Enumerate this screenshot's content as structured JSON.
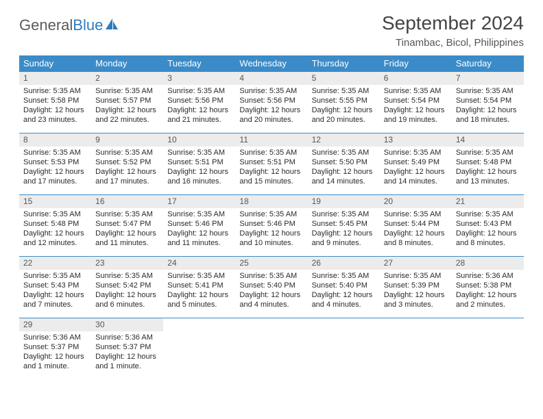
{
  "logo": {
    "part1": "General",
    "part2": "Blue"
  },
  "title": "September 2024",
  "location": "Tinambac, Bicol, Philippines",
  "colors": {
    "header_bg": "#3b8bc8",
    "header_text": "#ffffff",
    "daynum_bg": "#ececec",
    "row_border": "#3b8bc8",
    "logo_gray": "#5a5a5a",
    "logo_blue": "#2f7bbf"
  },
  "weekdays": [
    "Sunday",
    "Monday",
    "Tuesday",
    "Wednesday",
    "Thursday",
    "Friday",
    "Saturday"
  ],
  "weeks": [
    [
      {
        "day": "1",
        "sunrise": "Sunrise: 5:35 AM",
        "sunset": "Sunset: 5:58 PM",
        "daylight1": "Daylight: 12 hours",
        "daylight2": "and 23 minutes."
      },
      {
        "day": "2",
        "sunrise": "Sunrise: 5:35 AM",
        "sunset": "Sunset: 5:57 PM",
        "daylight1": "Daylight: 12 hours",
        "daylight2": "and 22 minutes."
      },
      {
        "day": "3",
        "sunrise": "Sunrise: 5:35 AM",
        "sunset": "Sunset: 5:56 PM",
        "daylight1": "Daylight: 12 hours",
        "daylight2": "and 21 minutes."
      },
      {
        "day": "4",
        "sunrise": "Sunrise: 5:35 AM",
        "sunset": "Sunset: 5:56 PM",
        "daylight1": "Daylight: 12 hours",
        "daylight2": "and 20 minutes."
      },
      {
        "day": "5",
        "sunrise": "Sunrise: 5:35 AM",
        "sunset": "Sunset: 5:55 PM",
        "daylight1": "Daylight: 12 hours",
        "daylight2": "and 20 minutes."
      },
      {
        "day": "6",
        "sunrise": "Sunrise: 5:35 AM",
        "sunset": "Sunset: 5:54 PM",
        "daylight1": "Daylight: 12 hours",
        "daylight2": "and 19 minutes."
      },
      {
        "day": "7",
        "sunrise": "Sunrise: 5:35 AM",
        "sunset": "Sunset: 5:54 PM",
        "daylight1": "Daylight: 12 hours",
        "daylight2": "and 18 minutes."
      }
    ],
    [
      {
        "day": "8",
        "sunrise": "Sunrise: 5:35 AM",
        "sunset": "Sunset: 5:53 PM",
        "daylight1": "Daylight: 12 hours",
        "daylight2": "and 17 minutes."
      },
      {
        "day": "9",
        "sunrise": "Sunrise: 5:35 AM",
        "sunset": "Sunset: 5:52 PM",
        "daylight1": "Daylight: 12 hours",
        "daylight2": "and 17 minutes."
      },
      {
        "day": "10",
        "sunrise": "Sunrise: 5:35 AM",
        "sunset": "Sunset: 5:51 PM",
        "daylight1": "Daylight: 12 hours",
        "daylight2": "and 16 minutes."
      },
      {
        "day": "11",
        "sunrise": "Sunrise: 5:35 AM",
        "sunset": "Sunset: 5:51 PM",
        "daylight1": "Daylight: 12 hours",
        "daylight2": "and 15 minutes."
      },
      {
        "day": "12",
        "sunrise": "Sunrise: 5:35 AM",
        "sunset": "Sunset: 5:50 PM",
        "daylight1": "Daylight: 12 hours",
        "daylight2": "and 14 minutes."
      },
      {
        "day": "13",
        "sunrise": "Sunrise: 5:35 AM",
        "sunset": "Sunset: 5:49 PM",
        "daylight1": "Daylight: 12 hours",
        "daylight2": "and 14 minutes."
      },
      {
        "day": "14",
        "sunrise": "Sunrise: 5:35 AM",
        "sunset": "Sunset: 5:48 PM",
        "daylight1": "Daylight: 12 hours",
        "daylight2": "and 13 minutes."
      }
    ],
    [
      {
        "day": "15",
        "sunrise": "Sunrise: 5:35 AM",
        "sunset": "Sunset: 5:48 PM",
        "daylight1": "Daylight: 12 hours",
        "daylight2": "and 12 minutes."
      },
      {
        "day": "16",
        "sunrise": "Sunrise: 5:35 AM",
        "sunset": "Sunset: 5:47 PM",
        "daylight1": "Daylight: 12 hours",
        "daylight2": "and 11 minutes."
      },
      {
        "day": "17",
        "sunrise": "Sunrise: 5:35 AM",
        "sunset": "Sunset: 5:46 PM",
        "daylight1": "Daylight: 12 hours",
        "daylight2": "and 11 minutes."
      },
      {
        "day": "18",
        "sunrise": "Sunrise: 5:35 AM",
        "sunset": "Sunset: 5:46 PM",
        "daylight1": "Daylight: 12 hours",
        "daylight2": "and 10 minutes."
      },
      {
        "day": "19",
        "sunrise": "Sunrise: 5:35 AM",
        "sunset": "Sunset: 5:45 PM",
        "daylight1": "Daylight: 12 hours",
        "daylight2": "and 9 minutes."
      },
      {
        "day": "20",
        "sunrise": "Sunrise: 5:35 AM",
        "sunset": "Sunset: 5:44 PM",
        "daylight1": "Daylight: 12 hours",
        "daylight2": "and 8 minutes."
      },
      {
        "day": "21",
        "sunrise": "Sunrise: 5:35 AM",
        "sunset": "Sunset: 5:43 PM",
        "daylight1": "Daylight: 12 hours",
        "daylight2": "and 8 minutes."
      }
    ],
    [
      {
        "day": "22",
        "sunrise": "Sunrise: 5:35 AM",
        "sunset": "Sunset: 5:43 PM",
        "daylight1": "Daylight: 12 hours",
        "daylight2": "and 7 minutes."
      },
      {
        "day": "23",
        "sunrise": "Sunrise: 5:35 AM",
        "sunset": "Sunset: 5:42 PM",
        "daylight1": "Daylight: 12 hours",
        "daylight2": "and 6 minutes."
      },
      {
        "day": "24",
        "sunrise": "Sunrise: 5:35 AM",
        "sunset": "Sunset: 5:41 PM",
        "daylight1": "Daylight: 12 hours",
        "daylight2": "and 5 minutes."
      },
      {
        "day": "25",
        "sunrise": "Sunrise: 5:35 AM",
        "sunset": "Sunset: 5:40 PM",
        "daylight1": "Daylight: 12 hours",
        "daylight2": "and 4 minutes."
      },
      {
        "day": "26",
        "sunrise": "Sunrise: 5:35 AM",
        "sunset": "Sunset: 5:40 PM",
        "daylight1": "Daylight: 12 hours",
        "daylight2": "and 4 minutes."
      },
      {
        "day": "27",
        "sunrise": "Sunrise: 5:35 AM",
        "sunset": "Sunset: 5:39 PM",
        "daylight1": "Daylight: 12 hours",
        "daylight2": "and 3 minutes."
      },
      {
        "day": "28",
        "sunrise": "Sunrise: 5:36 AM",
        "sunset": "Sunset: 5:38 PM",
        "daylight1": "Daylight: 12 hours",
        "daylight2": "and 2 minutes."
      }
    ],
    [
      {
        "day": "29",
        "sunrise": "Sunrise: 5:36 AM",
        "sunset": "Sunset: 5:37 PM",
        "daylight1": "Daylight: 12 hours",
        "daylight2": "and 1 minute."
      },
      {
        "day": "30",
        "sunrise": "Sunrise: 5:36 AM",
        "sunset": "Sunset: 5:37 PM",
        "daylight1": "Daylight: 12 hours",
        "daylight2": "and 1 minute."
      },
      null,
      null,
      null,
      null,
      null
    ]
  ]
}
